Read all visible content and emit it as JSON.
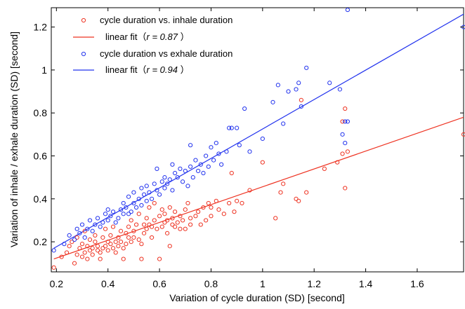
{
  "chart_data": {
    "type": "scatter",
    "xlabel": "Variation of cycle duration (SD) [second]",
    "ylabel": "Variation of inhale / exhale duration (SD) [second]",
    "xlim": [
      0.18,
      1.78
    ],
    "ylim": [
      0.06,
      1.29
    ],
    "xticks": [
      0.2,
      0.4,
      0.6,
      0.8,
      1,
      1.2,
      1.4,
      1.6
    ],
    "xtick_labels": [
      "0.2",
      "0.4",
      "0.6",
      "0.8",
      "1",
      "1.2",
      "1.4",
      "1.6"
    ],
    "yticks": [
      0.2,
      0.4,
      0.6,
      0.8,
      1,
      1.2
    ],
    "ytick_labels": [
      "0.2",
      "0.4",
      "0.6",
      "0.8",
      "1",
      "1.2"
    ],
    "grid": false,
    "legend_position": "top-left",
    "legend": [
      {
        "kind": "marker",
        "color": "#ee3322",
        "text": "cycle duration vs. inhale duration"
      },
      {
        "kind": "line",
        "color": "#ee3322",
        "prefix": "linear fit（",
        "italic": "r  =  0.87",
        "suffix": " ）"
      },
      {
        "kind": "marker",
        "color": "#2233ee",
        "text": "cycle duration vs exhale duration"
      },
      {
        "kind": "line",
        "color": "#2233ee",
        "prefix": "linear fit（",
        "italic": "r  =   0.94",
        "suffix": " ）"
      }
    ],
    "series": [
      {
        "color": "#ee3322",
        "marker": "circle-open",
        "points": [
          [
            0.19,
            0.08
          ],
          [
            0.22,
            0.13
          ],
          [
            0.24,
            0.15
          ],
          [
            0.25,
            0.18
          ],
          [
            0.26,
            0.2
          ],
          [
            0.27,
            0.1
          ],
          [
            0.28,
            0.14
          ],
          [
            0.28,
            0.22
          ],
          [
            0.29,
            0.17
          ],
          [
            0.3,
            0.13
          ],
          [
            0.3,
            0.19
          ],
          [
            0.31,
            0.15
          ],
          [
            0.31,
            0.25
          ],
          [
            0.32,
            0.12
          ],
          [
            0.32,
            0.18
          ],
          [
            0.33,
            0.16
          ],
          [
            0.33,
            0.21
          ],
          [
            0.34,
            0.14
          ],
          [
            0.34,
            0.17
          ],
          [
            0.35,
            0.2
          ],
          [
            0.35,
            0.23
          ],
          [
            0.36,
            0.16
          ],
          [
            0.36,
            0.18
          ],
          [
            0.37,
            0.12
          ],
          [
            0.37,
            0.15
          ],
          [
            0.38,
            0.22
          ],
          [
            0.38,
            0.17
          ],
          [
            0.39,
            0.18
          ],
          [
            0.39,
            0.26
          ],
          [
            0.4,
            0.16
          ],
          [
            0.4,
            0.2
          ],
          [
            0.41,
            0.19
          ],
          [
            0.41,
            0.23
          ],
          [
            0.42,
            0.17
          ],
          [
            0.42,
            0.27
          ],
          [
            0.43,
            0.2
          ],
          [
            0.43,
            0.15
          ],
          [
            0.44,
            0.22
          ],
          [
            0.44,
            0.18
          ],
          [
            0.45,
            0.25
          ],
          [
            0.45,
            0.2
          ],
          [
            0.46,
            0.12
          ],
          [
            0.46,
            0.17
          ],
          [
            0.47,
            0.19
          ],
          [
            0.47,
            0.24
          ],
          [
            0.48,
            0.22
          ],
          [
            0.48,
            0.27
          ],
          [
            0.49,
            0.2
          ],
          [
            0.49,
            0.3
          ],
          [
            0.5,
            0.22
          ],
          [
            0.5,
            0.25
          ],
          [
            0.51,
            0.28
          ],
          [
            0.52,
            0.21
          ],
          [
            0.52,
            0.33
          ],
          [
            0.53,
            0.12
          ],
          [
            0.53,
            0.19
          ],
          [
            0.54,
            0.28
          ],
          [
            0.54,
            0.24
          ],
          [
            0.55,
            0.26
          ],
          [
            0.55,
            0.31
          ],
          [
            0.56,
            0.28
          ],
          [
            0.56,
            0.36
          ],
          [
            0.57,
            0.22
          ],
          [
            0.57,
            0.27
          ],
          [
            0.58,
            0.3
          ],
          [
            0.58,
            0.38
          ],
          [
            0.59,
            0.26
          ],
          [
            0.6,
            0.12
          ],
          [
            0.6,
            0.32
          ],
          [
            0.61,
            0.27
          ],
          [
            0.61,
            0.35
          ],
          [
            0.62,
            0.29
          ],
          [
            0.62,
            0.33
          ],
          [
            0.63,
            0.24
          ],
          [
            0.63,
            0.3
          ],
          [
            0.64,
            0.18
          ],
          [
            0.64,
            0.36
          ],
          [
            0.65,
            0.31
          ],
          [
            0.65,
            0.28
          ],
          [
            0.66,
            0.34
          ],
          [
            0.66,
            0.27
          ],
          [
            0.67,
            0.29
          ],
          [
            0.68,
            0.32
          ],
          [
            0.68,
            0.26
          ],
          [
            0.69,
            0.3
          ],
          [
            0.7,
            0.35
          ],
          [
            0.7,
            0.26
          ],
          [
            0.71,
            0.38
          ],
          [
            0.72,
            0.31
          ],
          [
            0.72,
            0.28
          ],
          [
            0.74,
            0.32
          ],
          [
            0.75,
            0.34
          ],
          [
            0.76,
            0.28
          ],
          [
            0.77,
            0.36
          ],
          [
            0.78,
            0.3
          ],
          [
            0.79,
            0.38
          ],
          [
            0.8,
            0.36
          ],
          [
            0.8,
            0.32
          ],
          [
            0.82,
            0.39
          ],
          [
            0.83,
            0.35
          ],
          [
            0.85,
            0.33
          ],
          [
            0.87,
            0.38
          ],
          [
            0.88,
            0.52
          ],
          [
            0.89,
            0.34
          ],
          [
            0.9,
            0.39
          ],
          [
            0.92,
            0.38
          ],
          [
            0.95,
            0.44
          ],
          [
            1.0,
            0.57
          ],
          [
            1.05,
            0.31
          ],
          [
            1.07,
            0.43
          ],
          [
            1.08,
            0.47
          ],
          [
            1.13,
            0.4
          ],
          [
            1.14,
            0.39
          ],
          [
            1.15,
            0.86
          ],
          [
            1.17,
            0.43
          ],
          [
            1.24,
            0.54
          ],
          [
            1.29,
            0.57
          ],
          [
            1.31,
            0.61
          ],
          [
            1.31,
            0.76
          ],
          [
            1.32,
            0.82
          ],
          [
            1.32,
            0.45
          ],
          [
            1.33,
            0.62
          ],
          [
            1.78,
            0.7
          ]
        ]
      },
      {
        "color": "#2233ee",
        "marker": "circle-open",
        "points": [
          [
            0.19,
            0.16
          ],
          [
            0.23,
            0.19
          ],
          [
            0.25,
            0.23
          ],
          [
            0.27,
            0.21
          ],
          [
            0.28,
            0.26
          ],
          [
            0.29,
            0.24
          ],
          [
            0.3,
            0.28
          ],
          [
            0.31,
            0.22
          ],
          [
            0.32,
            0.26
          ],
          [
            0.33,
            0.3
          ],
          [
            0.34,
            0.25
          ],
          [
            0.35,
            0.28
          ],
          [
            0.36,
            0.31
          ],
          [
            0.37,
            0.27
          ],
          [
            0.38,
            0.29
          ],
          [
            0.39,
            0.33
          ],
          [
            0.4,
            0.3
          ],
          [
            0.4,
            0.35
          ],
          [
            0.41,
            0.32
          ],
          [
            0.42,
            0.34
          ],
          [
            0.43,
            0.29
          ],
          [
            0.44,
            0.31
          ],
          [
            0.45,
            0.35
          ],
          [
            0.46,
            0.33
          ],
          [
            0.46,
            0.38
          ],
          [
            0.47,
            0.36
          ],
          [
            0.48,
            0.33
          ],
          [
            0.48,
            0.41
          ],
          [
            0.49,
            0.34
          ],
          [
            0.5,
            0.38
          ],
          [
            0.5,
            0.43
          ],
          [
            0.51,
            0.36
          ],
          [
            0.52,
            0.4
          ],
          [
            0.53,
            0.37
          ],
          [
            0.53,
            0.45
          ],
          [
            0.54,
            0.42
          ],
          [
            0.55,
            0.39
          ],
          [
            0.55,
            0.46
          ],
          [
            0.56,
            0.43
          ],
          [
            0.57,
            0.4
          ],
          [
            0.58,
            0.47
          ],
          [
            0.59,
            0.44
          ],
          [
            0.59,
            0.54
          ],
          [
            0.6,
            0.42
          ],
          [
            0.61,
            0.48
          ],
          [
            0.62,
            0.45
          ],
          [
            0.62,
            0.5
          ],
          [
            0.63,
            0.47
          ],
          [
            0.64,
            0.49
          ],
          [
            0.65,
            0.56
          ],
          [
            0.65,
            0.44
          ],
          [
            0.66,
            0.52
          ],
          [
            0.67,
            0.5
          ],
          [
            0.68,
            0.54
          ],
          [
            0.69,
            0.48
          ],
          [
            0.7,
            0.53
          ],
          [
            0.71,
            0.46
          ],
          [
            0.72,
            0.55
          ],
          [
            0.72,
            0.65
          ],
          [
            0.73,
            0.5
          ],
          [
            0.74,
            0.58
          ],
          [
            0.75,
            0.53
          ],
          [
            0.76,
            0.56
          ],
          [
            0.77,
            0.52
          ],
          [
            0.78,
            0.6
          ],
          [
            0.79,
            0.55
          ],
          [
            0.8,
            0.64
          ],
          [
            0.81,
            0.58
          ],
          [
            0.82,
            0.66
          ],
          [
            0.83,
            0.61
          ],
          [
            0.84,
            0.56
          ],
          [
            0.86,
            0.62
          ],
          [
            0.87,
            0.73
          ],
          [
            0.88,
            0.73
          ],
          [
            0.9,
            0.73
          ],
          [
            0.91,
            0.65
          ],
          [
            0.93,
            0.82
          ],
          [
            0.95,
            0.62
          ],
          [
            1.0,
            0.68
          ],
          [
            1.04,
            0.85
          ],
          [
            1.06,
            0.93
          ],
          [
            1.08,
            0.75
          ],
          [
            1.1,
            0.9
          ],
          [
            1.13,
            0.91
          ],
          [
            1.14,
            0.94
          ],
          [
            1.15,
            0.83
          ],
          [
            1.17,
            1.01
          ],
          [
            1.26,
            0.94
          ],
          [
            1.3,
            0.91
          ],
          [
            1.31,
            0.7
          ],
          [
            1.32,
            0.66
          ],
          [
            1.32,
            0.76
          ],
          [
            1.33,
            0.76
          ],
          [
            1.33,
            1.28
          ],
          [
            1.78,
            1.2
          ]
        ]
      }
    ],
    "fit_lines": [
      {
        "color": "#ee3322",
        "x": [
          0.19,
          1.78
        ],
        "y": [
          0.12,
          0.78
        ]
      },
      {
        "color": "#2233ee",
        "x": [
          0.19,
          1.78
        ],
        "y": [
          0.17,
          1.26
        ]
      }
    ]
  }
}
